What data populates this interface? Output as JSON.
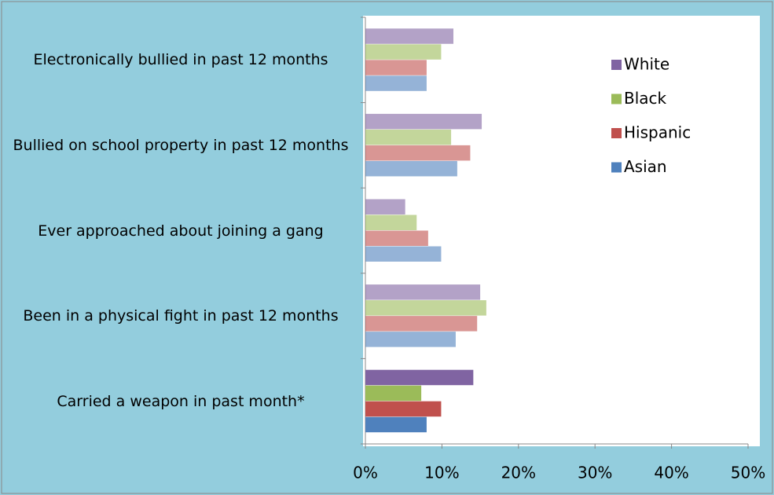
{
  "chart_data": {
    "type": "hbar",
    "categories": [
      "Electronically bullied in past 12 months",
      "Bullied on school property in past 12 months",
      "Ever approached about joining a gang",
      "Been in a physical fight in past 12 months",
      "Carried a weapon in past month*"
    ],
    "series": [
      {
        "name": "White",
        "color": "#8064a2",
        "values": [
          11.5,
          15.2,
          5.2,
          15.0,
          14.1
        ]
      },
      {
        "name": "Black",
        "color": "#9bbb59",
        "values": [
          9.9,
          11.2,
          6.7,
          15.8,
          7.3
        ]
      },
      {
        "name": "Hispanic",
        "color": "#c0504d",
        "values": [
          8.0,
          13.7,
          8.2,
          14.6,
          9.9
        ]
      },
      {
        "name": "Asian",
        "color": "#4f81bd",
        "values": [
          8.0,
          12.0,
          9.9,
          11.8,
          8.0
        ]
      }
    ],
    "category_opacity": [
      0.6,
      0.6,
      0.6,
      0.6,
      1
    ],
    "xlim": [
      0,
      50
    ],
    "xticks": [
      {
        "value": 0,
        "label": "0%"
      },
      {
        "value": 10,
        "label": "10%"
      },
      {
        "value": 20,
        "label": "20%"
      },
      {
        "value": 30,
        "label": "30%"
      },
      {
        "value": 40,
        "label": "40%"
      },
      {
        "value": 50,
        "label": "50%"
      }
    ],
    "legend": "upper right",
    "grid": false
  }
}
